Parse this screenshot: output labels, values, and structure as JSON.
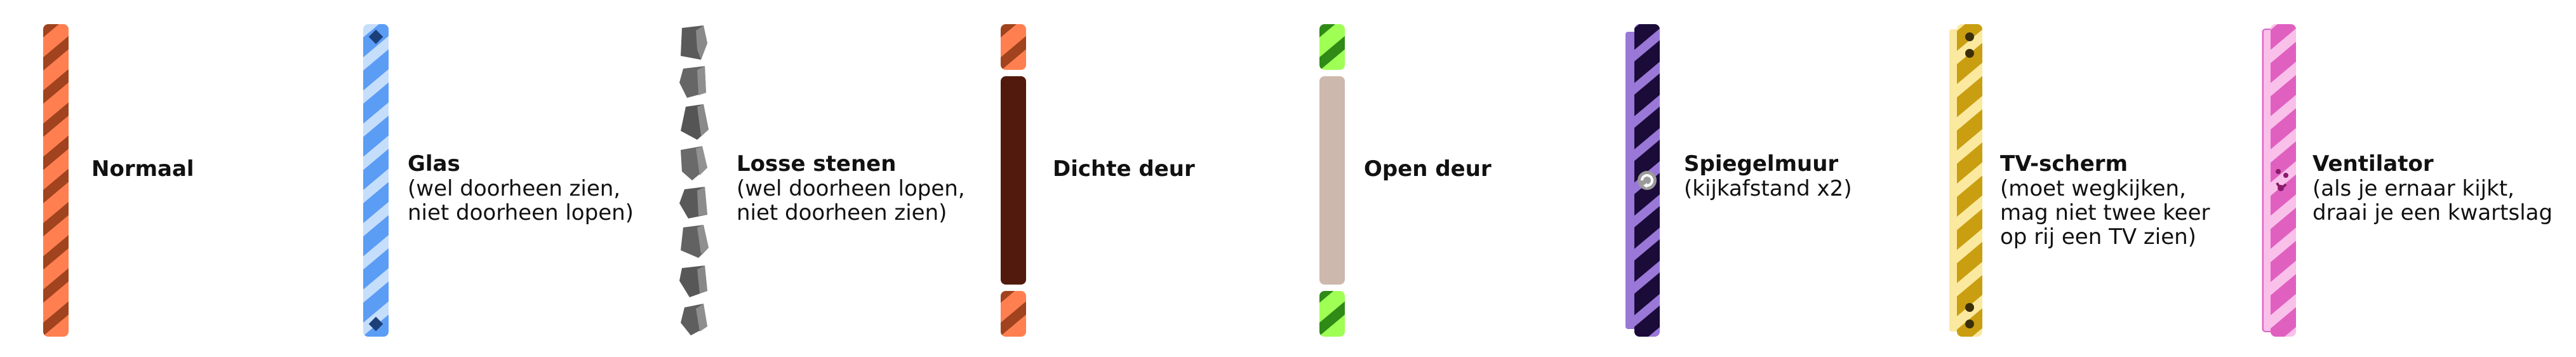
{
  "legend": {
    "items": [
      {
        "key": "normal",
        "name": "Normaal",
        "description": "",
        "color": "#ff7f50",
        "stripe": "#a0431e"
      },
      {
        "key": "glass",
        "name": "Glas",
        "description": "(wel doorheen zien,\nniet doorheen lopen)",
        "color": "#5b9cf5",
        "stripe": "#c5defb"
      },
      {
        "key": "loose-stones",
        "name": "Losse stenen",
        "description": "(wel doorheen lopen,\nniet doorheen zien)",
        "color": "#555555",
        "stripe": "#888888"
      },
      {
        "key": "closed-door",
        "name": "Dichte deur",
        "description": "",
        "color": "#521a0c",
        "stripe": "#ff7f50"
      },
      {
        "key": "open-door",
        "name": "Open deur",
        "description": "",
        "color": "#cdb8ad",
        "stripe": "#9fff55"
      },
      {
        "key": "mirror-wall",
        "name": "Spiegelmuur",
        "description": "(kijkafstand x2)",
        "color": "#1a0b38",
        "stripe": "#9a78d8"
      },
      {
        "key": "tv-screen",
        "name": "TV-scherm",
        "description": "(moet wegkijken,\nmag niet twee keer\nop rij een TV zien)",
        "color": "#c99e10",
        "stripe": "#fbe9a0"
      },
      {
        "key": "fan",
        "name": "Ventilator",
        "description": "(als je ernaar kijkt,\ndraai je een kwartslag",
        "color": "#e060c0",
        "stripe": "#f9c0ea"
      }
    ]
  }
}
